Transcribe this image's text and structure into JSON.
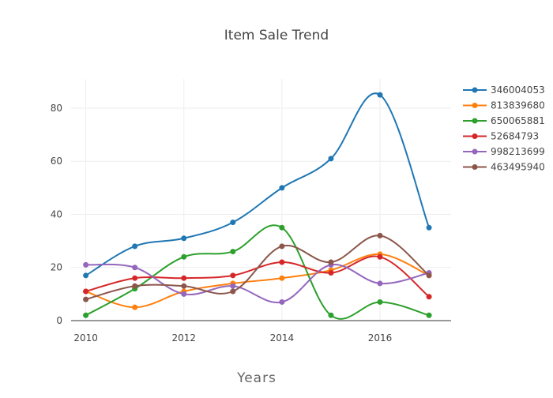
{
  "chart_data": {
    "type": "line",
    "title": "Item Sale Trend",
    "xlabel": "Years",
    "ylabel": "",
    "x": [
      2010,
      2011,
      2012,
      2013,
      2014,
      2015,
      2016,
      2017
    ],
    "xticks": [
      "2010",
      "2012",
      "2014",
      "2016"
    ],
    "xtick_values": [
      2010,
      2012,
      2014,
      2016
    ],
    "yticks": [
      "0",
      "20",
      "40",
      "60",
      "80"
    ],
    "ytick_values": [
      0,
      20,
      40,
      60,
      80
    ],
    "xlim": [
      2009.7,
      2017.45
    ],
    "ylim": [
      0,
      91
    ],
    "grid": true,
    "legend_position": "right",
    "series": [
      {
        "name": "346004053",
        "color": "#1f77b4",
        "values": [
          17,
          28,
          31,
          37,
          50,
          61,
          85,
          35
        ]
      },
      {
        "name": "813839680",
        "color": "#ff7f0e",
        "values": [
          11,
          5,
          11,
          14,
          16,
          19,
          25,
          17
        ]
      },
      {
        "name": "650065881",
        "color": "#2ca02c",
        "values": [
          2,
          12,
          24,
          26,
          35,
          2,
          7,
          2
        ]
      },
      {
        "name": "52684793",
        "color": "#d62728",
        "values": [
          11,
          16,
          16,
          17,
          22,
          18,
          24,
          9
        ]
      },
      {
        "name": "998213699",
        "color": "#9467bd",
        "values": [
          21,
          20,
          10,
          13,
          7,
          21,
          14,
          18
        ]
      },
      {
        "name": "463495940",
        "color": "#8c564b",
        "values": [
          8,
          13,
          13,
          11,
          28,
          22,
          32,
          17
        ]
      }
    ]
  }
}
